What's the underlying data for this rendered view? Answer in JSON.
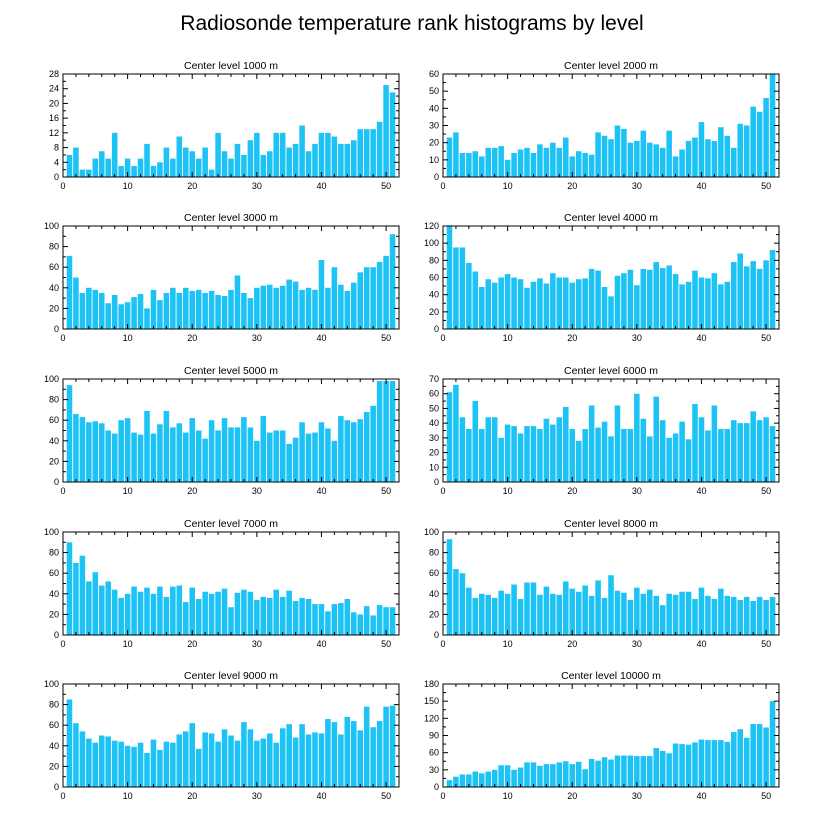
{
  "figure": {
    "title": "Radiosonde temperature rank histograms by level",
    "bar_color": "#1ec3f5"
  },
  "chart_data": [
    {
      "type": "bar",
      "title": "Center level 1000 m",
      "xlim": [
        0,
        52
      ],
      "ylim": [
        0,
        28
      ],
      "xticks": [
        0,
        10,
        20,
        30,
        40,
        50
      ],
      "yticks": [
        0,
        4,
        8,
        12,
        16,
        20,
        24,
        28
      ],
      "x": [
        1,
        2,
        3,
        4,
        5,
        6,
        7,
        8,
        9,
        10,
        11,
        12,
        13,
        14,
        15,
        16,
        17,
        18,
        19,
        20,
        21,
        22,
        23,
        24,
        25,
        26,
        27,
        28,
        29,
        30,
        31,
        32,
        33,
        34,
        35,
        36,
        37,
        38,
        39,
        40,
        41,
        42,
        43,
        44,
        45,
        46,
        47,
        48,
        49,
        50,
        51
      ],
      "values": [
        6,
        8,
        2,
        2,
        5,
        7,
        5,
        12,
        3,
        5,
        3,
        5,
        9,
        3,
        4,
        8,
        5,
        11,
        8,
        7,
        5,
        8,
        2,
        12,
        7,
        5,
        9,
        6,
        10,
        12,
        6,
        7,
        12,
        12,
        8,
        9,
        14,
        7,
        9,
        12,
        12,
        11,
        9,
        9,
        10,
        13,
        13,
        13,
        15,
        25,
        23
      ]
    },
    {
      "type": "bar",
      "title": "Center level 2000 m",
      "xlim": [
        0,
        52
      ],
      "ylim": [
        0,
        60
      ],
      "xticks": [
        0,
        10,
        20,
        30,
        40,
        50
      ],
      "yticks": [
        0,
        10,
        20,
        30,
        40,
        50,
        60
      ],
      "x": [
        1,
        2,
        3,
        4,
        5,
        6,
        7,
        8,
        9,
        10,
        11,
        12,
        13,
        14,
        15,
        16,
        17,
        18,
        19,
        20,
        21,
        22,
        23,
        24,
        25,
        26,
        27,
        28,
        29,
        30,
        31,
        32,
        33,
        34,
        35,
        36,
        37,
        38,
        39,
        40,
        41,
        42,
        43,
        44,
        45,
        46,
        47,
        48,
        49,
        50,
        51
      ],
      "values": [
        23,
        26,
        14,
        14,
        15,
        12,
        17,
        17,
        18,
        10,
        14,
        16,
        17,
        14,
        19,
        17,
        20,
        17,
        23,
        12,
        15,
        14,
        13,
        26,
        24,
        22,
        30,
        28,
        20,
        21,
        27,
        20,
        19,
        17,
        27,
        12,
        16,
        21,
        23,
        32,
        22,
        21,
        29,
        24,
        17,
        31,
        30,
        41,
        38,
        46,
        60
      ]
    },
    {
      "type": "bar",
      "title": "Center level 3000 m",
      "xlim": [
        0,
        52
      ],
      "ylim": [
        0,
        100
      ],
      "xticks": [
        0,
        10,
        20,
        30,
        40,
        50
      ],
      "yticks": [
        0,
        20,
        40,
        60,
        80,
        100
      ],
      "x": [
        1,
        2,
        3,
        4,
        5,
        6,
        7,
        8,
        9,
        10,
        11,
        12,
        13,
        14,
        15,
        16,
        17,
        18,
        19,
        20,
        21,
        22,
        23,
        24,
        25,
        26,
        27,
        28,
        29,
        30,
        31,
        32,
        33,
        34,
        35,
        36,
        37,
        38,
        39,
        40,
        41,
        42,
        43,
        44,
        45,
        46,
        47,
        48,
        49,
        50,
        51
      ],
      "values": [
        71,
        50,
        35,
        40,
        38,
        35,
        25,
        33,
        24,
        26,
        31,
        34,
        20,
        38,
        28,
        35,
        40,
        35,
        40,
        37,
        38,
        35,
        37,
        33,
        32,
        38,
        52,
        35,
        30,
        40,
        42,
        43,
        40,
        42,
        48,
        46,
        38,
        40,
        38,
        67,
        40,
        60,
        43,
        37,
        45,
        55,
        60,
        60,
        65,
        71,
        92
      ]
    },
    {
      "type": "bar",
      "title": "Center level 4000 m",
      "xlim": [
        0,
        52
      ],
      "ylim": [
        0,
        120
      ],
      "xticks": [
        0,
        10,
        20,
        30,
        40,
        50
      ],
      "yticks": [
        0,
        20,
        40,
        60,
        80,
        100,
        120
      ],
      "x": [
        1,
        2,
        3,
        4,
        5,
        6,
        7,
        8,
        9,
        10,
        11,
        12,
        13,
        14,
        15,
        16,
        17,
        18,
        19,
        20,
        21,
        22,
        23,
        24,
        25,
        26,
        27,
        28,
        29,
        30,
        31,
        32,
        33,
        34,
        35,
        36,
        37,
        38,
        39,
        40,
        41,
        42,
        43,
        44,
        45,
        46,
        47,
        48,
        49,
        50,
        51
      ],
      "values": [
        120,
        95,
        95,
        77,
        67,
        49,
        58,
        54,
        60,
        64,
        60,
        58,
        48,
        55,
        59,
        53,
        65,
        60,
        60,
        54,
        58,
        59,
        70,
        68,
        49,
        38,
        62,
        65,
        69,
        51,
        70,
        69,
        78,
        71,
        74,
        64,
        52,
        55,
        68,
        60,
        59,
        65,
        52,
        55,
        78,
        88,
        73,
        79,
        70,
        80,
        92
      ]
    },
    {
      "type": "bar",
      "title": "Center level 5000 m",
      "xlim": [
        0,
        52
      ],
      "ylim": [
        0,
        100
      ],
      "xticks": [
        0,
        10,
        20,
        30,
        40,
        50
      ],
      "yticks": [
        0,
        20,
        40,
        60,
        80,
        100
      ],
      "x": [
        1,
        2,
        3,
        4,
        5,
        6,
        7,
        8,
        9,
        10,
        11,
        12,
        13,
        14,
        15,
        16,
        17,
        18,
        19,
        20,
        21,
        22,
        23,
        24,
        25,
        26,
        27,
        28,
        29,
        30,
        31,
        32,
        33,
        34,
        35,
        36,
        37,
        38,
        39,
        40,
        41,
        42,
        43,
        44,
        45,
        46,
        47,
        48,
        49,
        50,
        51
      ],
      "values": [
        94,
        66,
        63,
        58,
        59,
        57,
        50,
        47,
        60,
        62,
        48,
        46,
        69,
        47,
        56,
        69,
        53,
        57,
        48,
        62,
        50,
        42,
        60,
        50,
        62,
        53,
        53,
        63,
        53,
        40,
        64,
        48,
        50,
        50,
        37,
        43,
        58,
        47,
        48,
        58,
        52,
        40,
        64,
        60,
        58,
        61,
        68,
        74,
        98,
        98,
        98
      ]
    },
    {
      "type": "bar",
      "title": "Center level 6000 m",
      "xlim": [
        0,
        52
      ],
      "ylim": [
        0,
        70
      ],
      "xticks": [
        0,
        10,
        20,
        30,
        40,
        50
      ],
      "yticks": [
        0,
        10,
        20,
        30,
        40,
        50,
        60,
        70
      ],
      "x": [
        1,
        2,
        3,
        4,
        5,
        6,
        7,
        8,
        9,
        10,
        11,
        12,
        13,
        14,
        15,
        16,
        17,
        18,
        19,
        20,
        21,
        22,
        23,
        24,
        25,
        26,
        27,
        28,
        29,
        30,
        31,
        32,
        33,
        34,
        35,
        36,
        37,
        38,
        39,
        40,
        41,
        42,
        43,
        44,
        45,
        46,
        47,
        48,
        49,
        50,
        51
      ],
      "values": [
        61,
        66,
        44,
        36,
        55,
        36,
        44,
        44,
        30,
        39,
        38,
        33,
        38,
        38,
        36,
        43,
        39,
        44,
        51,
        36,
        28,
        36,
        52,
        37,
        41,
        31,
        52,
        36,
        36,
        60,
        43,
        31,
        58,
        42,
        30,
        33,
        41,
        29,
        53,
        44,
        35,
        52,
        36,
        36,
        42,
        40,
        40,
        48,
        42,
        44,
        38
      ]
    },
    {
      "type": "bar",
      "title": "Center level 7000 m",
      "xlim": [
        0,
        52
      ],
      "ylim": [
        0,
        100
      ],
      "xticks": [
        0,
        10,
        20,
        30,
        40,
        50
      ],
      "yticks": [
        0,
        20,
        40,
        60,
        80,
        100
      ],
      "x": [
        1,
        2,
        3,
        4,
        5,
        6,
        7,
        8,
        9,
        10,
        11,
        12,
        13,
        14,
        15,
        16,
        17,
        18,
        19,
        20,
        21,
        22,
        23,
        24,
        25,
        26,
        27,
        28,
        29,
        30,
        31,
        32,
        33,
        34,
        35,
        36,
        37,
        38,
        39,
        40,
        41,
        42,
        43,
        44,
        45,
        46,
        47,
        48,
        49,
        50,
        51
      ],
      "values": [
        90,
        70,
        77,
        52,
        61,
        48,
        52,
        44,
        36,
        40,
        47,
        42,
        46,
        40,
        47,
        37,
        47,
        48,
        32,
        46,
        35,
        42,
        40,
        42,
        45,
        27,
        41,
        44,
        42,
        34,
        37,
        36,
        44,
        37,
        43,
        33,
        36,
        35,
        30,
        30,
        23,
        30,
        31,
        35,
        22,
        20,
        28,
        19,
        29,
        27,
        27
      ]
    },
    {
      "type": "bar",
      "title": "Center level 8000 m",
      "xlim": [
        0,
        52
      ],
      "ylim": [
        0,
        100
      ],
      "xticks": [
        0,
        10,
        20,
        30,
        40,
        50
      ],
      "yticks": [
        0,
        20,
        40,
        60,
        80,
        100
      ],
      "x": [
        1,
        2,
        3,
        4,
        5,
        6,
        7,
        8,
        9,
        10,
        11,
        12,
        13,
        14,
        15,
        16,
        17,
        18,
        19,
        20,
        21,
        22,
        23,
        24,
        25,
        26,
        27,
        28,
        29,
        30,
        31,
        32,
        33,
        34,
        35,
        36,
        37,
        38,
        39,
        40,
        41,
        42,
        43,
        44,
        45,
        46,
        47,
        48,
        49,
        50,
        51
      ],
      "values": [
        93,
        64,
        60,
        46,
        36,
        40,
        39,
        36,
        43,
        40,
        49,
        35,
        51,
        51,
        39,
        47,
        40,
        39,
        52,
        45,
        42,
        48,
        38,
        53,
        36,
        58,
        43,
        41,
        34,
        46,
        40,
        44,
        38,
        29,
        40,
        39,
        42,
        42,
        35,
        46,
        38,
        35,
        45,
        38,
        37,
        34,
        37,
        33,
        37,
        34,
        37
      ]
    },
    {
      "type": "bar",
      "title": "Center level 9000 m",
      "xlim": [
        0,
        52
      ],
      "ylim": [
        0,
        100
      ],
      "xticks": [
        0,
        10,
        20,
        30,
        40,
        50
      ],
      "yticks": [
        0,
        20,
        40,
        60,
        80,
        100
      ],
      "x": [
        1,
        2,
        3,
        4,
        5,
        6,
        7,
        8,
        9,
        10,
        11,
        12,
        13,
        14,
        15,
        16,
        17,
        18,
        19,
        20,
        21,
        22,
        23,
        24,
        25,
        26,
        27,
        28,
        29,
        30,
        31,
        32,
        33,
        34,
        35,
        36,
        37,
        38,
        39,
        40,
        41,
        42,
        43,
        44,
        45,
        46,
        47,
        48,
        49,
        50,
        51
      ],
      "values": [
        85,
        62,
        54,
        47,
        43,
        50,
        49,
        45,
        44,
        40,
        39,
        43,
        33,
        46,
        36,
        44,
        43,
        51,
        54,
        62,
        37,
        53,
        52,
        44,
        56,
        50,
        45,
        63,
        56,
        45,
        47,
        52,
        43,
        57,
        61,
        48,
        61,
        51,
        53,
        52,
        66,
        63,
        51,
        68,
        64,
        55,
        78,
        58,
        64,
        78,
        79
      ]
    },
    {
      "type": "bar",
      "title": "Center level 10000 m",
      "xlim": [
        0,
        52
      ],
      "ylim": [
        0,
        180
      ],
      "xticks": [
        0,
        10,
        20,
        30,
        40,
        50
      ],
      "yticks": [
        0,
        30,
        60,
        90,
        120,
        150,
        180
      ],
      "x": [
        1,
        2,
        3,
        4,
        5,
        6,
        7,
        8,
        9,
        10,
        11,
        12,
        13,
        14,
        15,
        16,
        17,
        18,
        19,
        20,
        21,
        22,
        23,
        24,
        25,
        26,
        27,
        28,
        29,
        30,
        31,
        32,
        33,
        34,
        35,
        36,
        37,
        38,
        39,
        40,
        41,
        42,
        43,
        44,
        45,
        46,
        47,
        48,
        49,
        50,
        51
      ],
      "values": [
        12,
        18,
        22,
        22,
        27,
        24,
        27,
        30,
        38,
        38,
        30,
        34,
        43,
        43,
        37,
        40,
        40,
        43,
        45,
        40,
        44,
        31,
        49,
        46,
        52,
        48,
        55,
        55,
        55,
        54,
        54,
        54,
        68,
        63,
        59,
        76,
        75,
        74,
        78,
        83,
        82,
        82,
        82,
        79,
        96,
        101,
        86,
        110,
        110,
        104,
        150
      ]
    }
  ]
}
